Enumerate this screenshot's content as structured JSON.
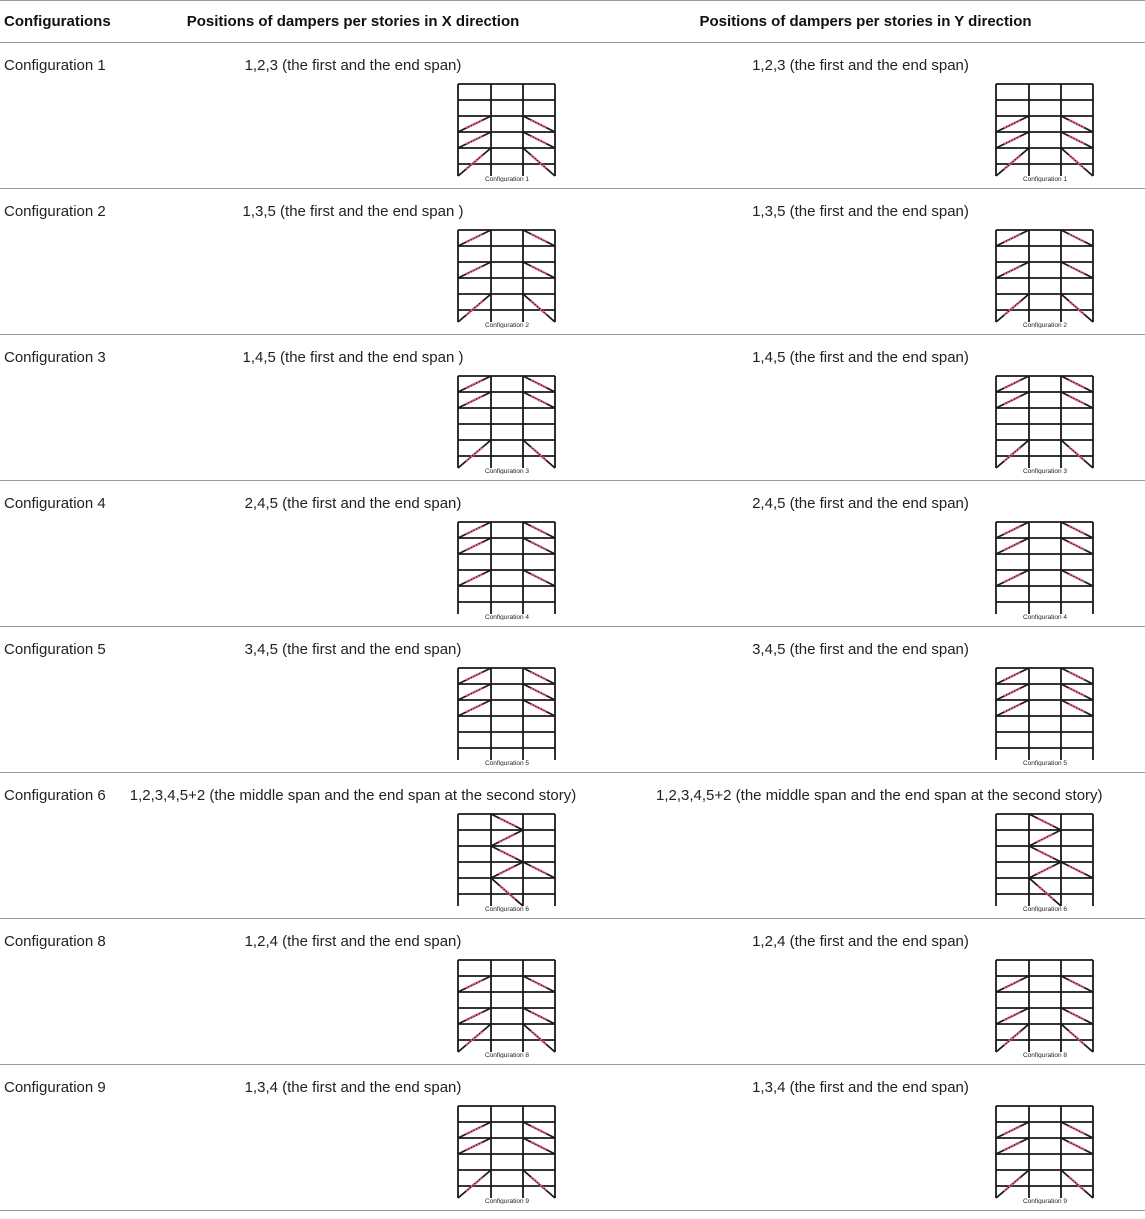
{
  "table": {
    "headers": {
      "configurations": "Configurations",
      "x_direction": "Positions of dampers per stories in X direction",
      "y_direction": "Positions of dampers per stories in Y direction"
    },
    "rows": [
      {
        "config": "Configuration 1",
        "x_text": "1,2,3 (the first and the end span)",
        "y_text": "1,2,3 (the first and the end span)",
        "figure_label": "Configuration 1",
        "dampers": [
          [
            1,
            "L"
          ],
          [
            1,
            "R"
          ],
          [
            2,
            "L"
          ],
          [
            2,
            "R"
          ],
          [
            3,
            "L"
          ],
          [
            3,
            "R"
          ]
        ]
      },
      {
        "config": "Configuration 2",
        "x_text": "1,3,5 (the first and the end span )",
        "y_text": "1,3,5 (the first and the end span)",
        "figure_label": "Configuration 2",
        "dampers": [
          [
            1,
            "L"
          ],
          [
            1,
            "R"
          ],
          [
            3,
            "L"
          ],
          [
            3,
            "R"
          ],
          [
            5,
            "L"
          ],
          [
            5,
            "R"
          ]
        ]
      },
      {
        "config": "Configuration 3",
        "x_text": "1,4,5 (the first and the end span )",
        "y_text": "1,4,5 (the first and the end span)",
        "figure_label": "Configuration 3",
        "dampers": [
          [
            1,
            "L"
          ],
          [
            1,
            "R"
          ],
          [
            4,
            "L"
          ],
          [
            4,
            "R"
          ],
          [
            5,
            "L"
          ],
          [
            5,
            "R"
          ]
        ]
      },
      {
        "config": "Configuration 4",
        "x_text": "2,4,5 (the first and the end span)",
        "y_text": "2,4,5 (the first and the end span)",
        "figure_label": "Configuration 4",
        "dampers": [
          [
            2,
            "L"
          ],
          [
            2,
            "R"
          ],
          [
            4,
            "L"
          ],
          [
            4,
            "R"
          ],
          [
            5,
            "L"
          ],
          [
            5,
            "R"
          ]
        ]
      },
      {
        "config": "Configuration 5",
        "x_text": "3,4,5 (the first and the end span)",
        "y_text": "3,4,5 (the first and the end span)",
        "figure_label": "Configuration 5",
        "dampers": [
          [
            3,
            "L"
          ],
          [
            3,
            "R"
          ],
          [
            4,
            "L"
          ],
          [
            4,
            "R"
          ],
          [
            5,
            "L"
          ],
          [
            5,
            "R"
          ]
        ]
      },
      {
        "config": "Configuration 6",
        "x_text": "1,2,3,4,5+2 (the middle span and the end span at the second story)",
        "y_text": "1,2,3,4,5+2 (the middle span and the end span at the second story)",
        "figure_label": "Configuration 6",
        "dampers": [
          [
            1,
            "M"
          ],
          [
            2,
            "M"
          ],
          [
            3,
            "M"
          ],
          [
            4,
            "M"
          ],
          [
            5,
            "M"
          ],
          [
            2,
            "R"
          ]
        ]
      },
      {
        "config": "Configuration 8",
        "x_text": "1,2,4 (the first and the end span)",
        "y_text": "1,2,4 (the first and the end span)",
        "figure_label": "Configuration 8",
        "dampers": [
          [
            1,
            "L"
          ],
          [
            1,
            "R"
          ],
          [
            2,
            "L"
          ],
          [
            2,
            "R"
          ],
          [
            4,
            "L"
          ],
          [
            4,
            "R"
          ]
        ]
      },
      {
        "config": "Configuration 9",
        "x_text": "1,3,4 (the first and the end span)",
        "y_text": "1,3,4 (the first and the end span)",
        "figure_label": "Configuration 9",
        "dampers": [
          [
            1,
            "L"
          ],
          [
            1,
            "R"
          ],
          [
            3,
            "L"
          ],
          [
            3,
            "R"
          ],
          [
            4,
            "L"
          ],
          [
            4,
            "R"
          ]
        ]
      }
    ]
  },
  "colors": {
    "frame": "#1a1a1a",
    "damper": "#e0607a",
    "rule": "#9a9a9a"
  }
}
